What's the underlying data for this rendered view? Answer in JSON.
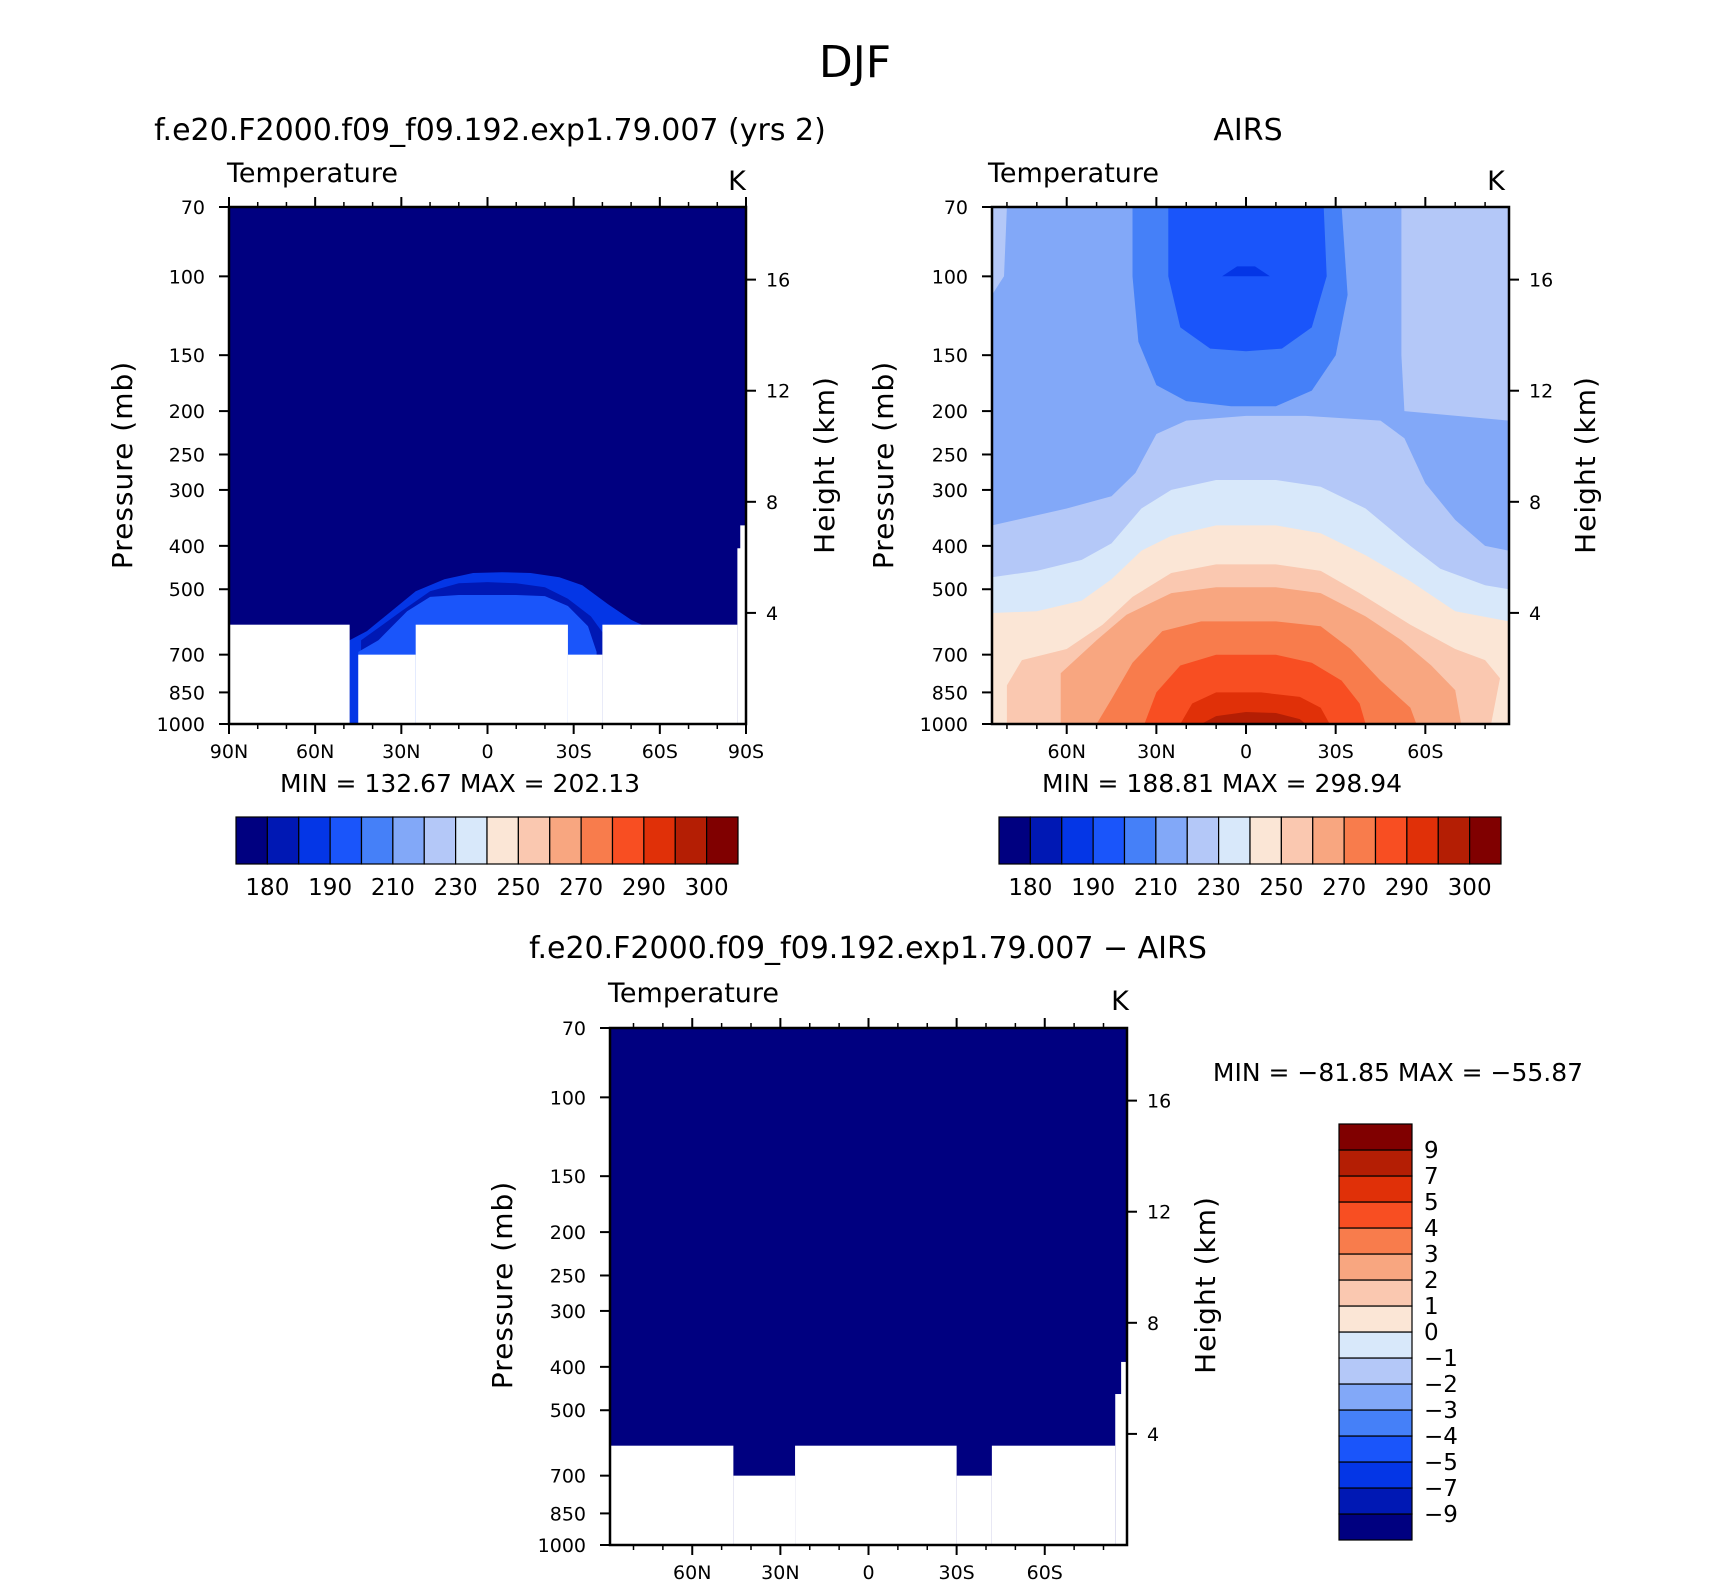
{
  "figure": {
    "title": "DJF",
    "colors": [
      "#000080",
      "#0018b4",
      "#0436e6",
      "#1a55fa",
      "#4580f8",
      "#82a8f8",
      "#b4c8f8",
      "#d8e8fa",
      "#fbe6d6",
      "#fac8b0",
      "#f8a680",
      "#f87c4c",
      "#f84e22",
      "#e03008",
      "#b41e04",
      "#800000"
    ]
  },
  "chart_data": [
    {
      "type": "heatmap",
      "title": "f.e20.F2000.f09_f09.192.exp1.79.007 (yrs 2)",
      "subtitle": "Temperature",
      "units": "K",
      "xlabel": "",
      "ylabel": "Pressure (mb)",
      "y2label": "Height (km)",
      "x_ticklabels": [
        "90N",
        "60N",
        "30N",
        "0",
        "30S",
        "60S",
        "90S"
      ],
      "x_ticks": [
        90,
        60,
        30,
        0,
        -30,
        -60,
        -90
      ],
      "xlim": [
        90,
        -90
      ],
      "ylim": [
        1000,
        70
      ],
      "yscale": "log",
      "y_ticks": [
        70,
        100,
        150,
        200,
        250,
        300,
        400,
        500,
        700,
        850,
        1000
      ],
      "y2_ticks": [
        16,
        12,
        8,
        4
      ],
      "min": "132.67",
      "max": "202.13",
      "colorbar_labels": [
        "180",
        "190",
        "210",
        "230",
        "250",
        "270",
        "290",
        "300"
      ],
      "levels": [
        {
          "level": 2,
          "boundary": [
            [
              48,
              1000
            ],
            [
              48,
              650
            ],
            [
              42,
              620
            ],
            [
              35,
              570
            ],
            [
              25,
              505
            ],
            [
              15,
              475
            ],
            [
              5,
              460
            ],
            [
              -5,
              458
            ],
            [
              -15,
              460
            ],
            [
              -25,
              470
            ],
            [
              -33,
              490
            ],
            [
              -42,
              540
            ],
            [
              -50,
              585
            ],
            [
              -56,
              610
            ],
            [
              -60,
              650
            ],
            [
              -60,
              1000
            ]
          ]
        },
        {
          "level": 1,
          "boundary": [
            [
              44,
              1000
            ],
            [
              44,
              650
            ],
            [
              38,
              610
            ],
            [
              30,
              560
            ],
            [
              20,
              505
            ],
            [
              10,
              485
            ],
            [
              0,
              482
            ],
            [
              -10,
              485
            ],
            [
              -20,
              495
            ],
            [
              -28,
              525
            ],
            [
              -36,
              575
            ],
            [
              -42,
              650
            ],
            [
              -42,
              1000
            ]
          ]
        },
        {
          "level": 3,
          "boundary": [
            [
              45,
              1000
            ],
            [
              45,
              690
            ],
            [
              38,
              650
            ],
            [
              28,
              560
            ],
            [
              20,
              520
            ],
            [
              10,
              515
            ],
            [
              -10,
              515
            ],
            [
              -20,
              518
            ],
            [
              -28,
              545
            ],
            [
              -35,
              605
            ],
            [
              -38,
              690
            ],
            [
              -38,
              1000
            ]
          ]
        }
      ],
      "missing": [
        {
          "from_lat": 90,
          "to_lat": 48,
          "bottom_p": 1000,
          "top_p": 600
        },
        {
          "from_lat": 25,
          "to_lat": -28,
          "bottom_p": 1000,
          "top_p": 600
        },
        {
          "from_lat": -40,
          "to_lat": -87,
          "bottom_p": 1000,
          "top_p": 600
        },
        {
          "from_lat": 45,
          "to_lat": 25,
          "bottom_p": 1000,
          "top_p": 700
        },
        {
          "from_lat": -28,
          "to_lat": -40,
          "bottom_p": 1000,
          "top_p": 700
        },
        {
          "from_lat": -87,
          "to_lat": -90,
          "bottom_p": 1000,
          "top_p": 405
        },
        {
          "from_lat": -88,
          "to_lat": -90,
          "bottom_p": 1000,
          "top_p": 360
        }
      ]
    },
    {
      "type": "heatmap",
      "title": "AIRS",
      "subtitle": "Temperature",
      "units": "K",
      "xlabel": "",
      "ylabel": "Pressure (mb)",
      "y2label": "Height (km)",
      "x_ticklabels": [
        "60N",
        "30N",
        "0",
        "30S",
        "60S"
      ],
      "x_ticks": [
        60,
        30,
        0,
        -30,
        -60
      ],
      "xlim": [
        85,
        -88
      ],
      "ylim": [
        1000,
        70
      ],
      "yscale": "log",
      "y_ticks": [
        70,
        100,
        150,
        200,
        250,
        300,
        400,
        500,
        700,
        850,
        1000
      ],
      "y2_ticks": [
        16,
        12,
        8,
        4
      ],
      "min": "188.81",
      "max": "298.94",
      "colorbar_labels": [
        "180",
        "190",
        "210",
        "230",
        "250",
        "270",
        "290",
        "300"
      ],
      "background_level": 5,
      "levels": [
        {
          "level": 6,
          "boundary": [
            [
              -52,
              70
            ],
            [
              -52,
              150
            ],
            [
              -53,
              200
            ],
            [
              -88,
              210
            ],
            [
              -88,
              70
            ]
          ]
        },
        {
          "level": 6,
          "boundary": [
            [
              85,
              70
            ],
            [
              85,
              110
            ],
            [
              81,
              100
            ],
            [
              80,
              70
            ]
          ]
        },
        {
          "level": 4,
          "boundary": [
            [
              38,
              70
            ],
            [
              38,
              100
            ],
            [
              36,
              140
            ],
            [
              30,
              175
            ],
            [
              20,
              190
            ],
            [
              5,
              195
            ],
            [
              -10,
              195
            ],
            [
              -22,
              180
            ],
            [
              -30,
              150
            ],
            [
              -34,
              110
            ],
            [
              -32,
              70
            ]
          ]
        },
        {
          "level": 3,
          "boundary": [
            [
              26,
              70
            ],
            [
              26,
              100
            ],
            [
              22,
              130
            ],
            [
              12,
              145
            ],
            [
              0,
              147
            ],
            [
              -12,
              145
            ],
            [
              -22,
              130
            ],
            [
              -27,
              100
            ],
            [
              -26,
              70
            ]
          ]
        },
        {
          "level": 2,
          "boundary": [
            [
              8,
              100
            ],
            [
              3,
              95
            ],
            [
              -3,
              95
            ],
            [
              -8,
              100
            ]
          ]
        },
        {
          "level": 6,
          "boundary": [
            [
              85,
              1000
            ],
            [
              85,
              360
            ],
            [
              60,
              330
            ],
            [
              45,
              310
            ],
            [
              37,
              275
            ],
            [
              30,
              225
            ],
            [
              20,
              210
            ],
            [
              0,
              205
            ],
            [
              -20,
              205
            ],
            [
              -45,
              210
            ],
            [
              -53,
              230
            ],
            [
              -60,
              290
            ],
            [
              -70,
              350
            ],
            [
              -80,
              400
            ],
            [
              -88,
              410
            ],
            [
              -88,
              1000
            ]
          ]
        },
        {
          "level": 7,
          "boundary": [
            [
              85,
              1000
            ],
            [
              85,
              470
            ],
            [
              70,
              455
            ],
            [
              55,
              430
            ],
            [
              45,
              395
            ],
            [
              35,
              330
            ],
            [
              25,
              300
            ],
            [
              10,
              285
            ],
            [
              -10,
              285
            ],
            [
              -25,
              295
            ],
            [
              -40,
              330
            ],
            [
              -55,
              400
            ],
            [
              -65,
              450
            ],
            [
              -80,
              490
            ],
            [
              -88,
              500
            ],
            [
              -88,
              1000
            ]
          ]
        },
        {
          "level": 8,
          "boundary": [
            [
              85,
              1000
            ],
            [
              85,
              565
            ],
            [
              70,
              560
            ],
            [
              55,
              530
            ],
            [
              45,
              475
            ],
            [
              35,
              410
            ],
            [
              25,
              380
            ],
            [
              10,
              360
            ],
            [
              -10,
              360
            ],
            [
              -25,
              375
            ],
            [
              -40,
              420
            ],
            [
              -55,
              480
            ],
            [
              -70,
              560
            ],
            [
              -88,
              590
            ],
            [
              -88,
              1000
            ]
          ]
        },
        {
          "level": 9,
          "boundary": [
            [
              80,
              1000
            ],
            [
              80,
              820
            ],
            [
              75,
              720
            ],
            [
              60,
              680
            ],
            [
              48,
              600
            ],
            [
              38,
              520
            ],
            [
              25,
              460
            ],
            [
              10,
              440
            ],
            [
              -10,
              440
            ],
            [
              -25,
              455
            ],
            [
              -38,
              510
            ],
            [
              -55,
              600
            ],
            [
              -70,
              680
            ],
            [
              -80,
              720
            ],
            [
              -85,
              790
            ],
            [
              -82,
              1000
            ]
          ]
        },
        {
          "level": 10,
          "boundary": [
            [
              62,
              1000
            ],
            [
              62,
              770
            ],
            [
              50,
              650
            ],
            [
              40,
              570
            ],
            [
              25,
              510
            ],
            [
              10,
              495
            ],
            [
              -10,
              495
            ],
            [
              -25,
              510
            ],
            [
              -40,
              575
            ],
            [
              -52,
              650
            ],
            [
              -62,
              740
            ],
            [
              -70,
              840
            ],
            [
              -72,
              1000
            ]
          ]
        },
        {
          "level": 11,
          "boundary": [
            [
              50,
              1000
            ],
            [
              45,
              880
            ],
            [
              38,
              730
            ],
            [
              28,
              620
            ],
            [
              15,
              590
            ],
            [
              -10,
              590
            ],
            [
              -25,
              605
            ],
            [
              -35,
              680
            ],
            [
              -45,
              800
            ],
            [
              -55,
              920
            ],
            [
              -57,
              1000
            ]
          ]
        },
        {
          "level": 12,
          "boundary": [
            [
              34,
              1000
            ],
            [
              30,
              850
            ],
            [
              22,
              740
            ],
            [
              10,
              700
            ],
            [
              -10,
              700
            ],
            [
              -22,
              730
            ],
            [
              -32,
              800
            ],
            [
              -38,
              900
            ],
            [
              -40,
              1000
            ]
          ]
        },
        {
          "level": 13,
          "boundary": [
            [
              22,
              1000
            ],
            [
              18,
              900
            ],
            [
              10,
              850
            ],
            [
              -5,
              850
            ],
            [
              -18,
              870
            ],
            [
              -25,
              920
            ],
            [
              -28,
              1000
            ]
          ]
        },
        {
          "level": 14,
          "boundary": [
            [
              15,
              1000
            ],
            [
              10,
              960
            ],
            [
              0,
              940
            ],
            [
              -10,
              945
            ],
            [
              -18,
              975
            ],
            [
              -20,
              1000
            ]
          ]
        }
      ],
      "missing": []
    },
    {
      "type": "heatmap",
      "title": "f.e20.F2000.f09_f09.192.exp1.79.007 − AIRS",
      "subtitle": "Temperature",
      "units": "K",
      "xlabel": "",
      "ylabel": "Pressure (mb)",
      "y2label": "Height (km)",
      "x_ticklabels": [
        "60N",
        "30N",
        "0",
        "30S",
        "60S"
      ],
      "x_ticks": [
        60,
        30,
        0,
        -30,
        -60
      ],
      "xlim": [
        88,
        -88
      ],
      "ylim": [
        1000,
        70
      ],
      "yscale": "log",
      "y_ticks": [
        70,
        100,
        150,
        200,
        250,
        300,
        400,
        500,
        700,
        850,
        1000
      ],
      "y2_ticks": [
        16,
        12,
        8,
        4
      ],
      "min": "−81.85",
      "max": "−55.87",
      "colorbar_labels": [
        "9",
        "7",
        "5",
        "4",
        "3",
        "2",
        "1",
        "0",
        "−1",
        "−2",
        "−3",
        "−4",
        "−5",
        "−7",
        "−9"
      ],
      "levels": [],
      "missing": [
        {
          "from_lat": 88,
          "to_lat": 46,
          "bottom_p": 1000,
          "top_p": 600
        },
        {
          "from_lat": 25,
          "to_lat": -30,
          "bottom_p": 1000,
          "top_p": 600
        },
        {
          "from_lat": -42,
          "to_lat": -84,
          "bottom_p": 1000,
          "top_p": 600
        },
        {
          "from_lat": 46,
          "to_lat": 25,
          "bottom_p": 1000,
          "top_p": 700
        },
        {
          "from_lat": -30,
          "to_lat": -42,
          "bottom_p": 1000,
          "top_p": 700
        },
        {
          "from_lat": -84,
          "to_lat": -88,
          "bottom_p": 1000,
          "top_p": 460
        },
        {
          "from_lat": -86,
          "to_lat": -88,
          "bottom_p": 1000,
          "top_p": 390
        }
      ]
    }
  ]
}
